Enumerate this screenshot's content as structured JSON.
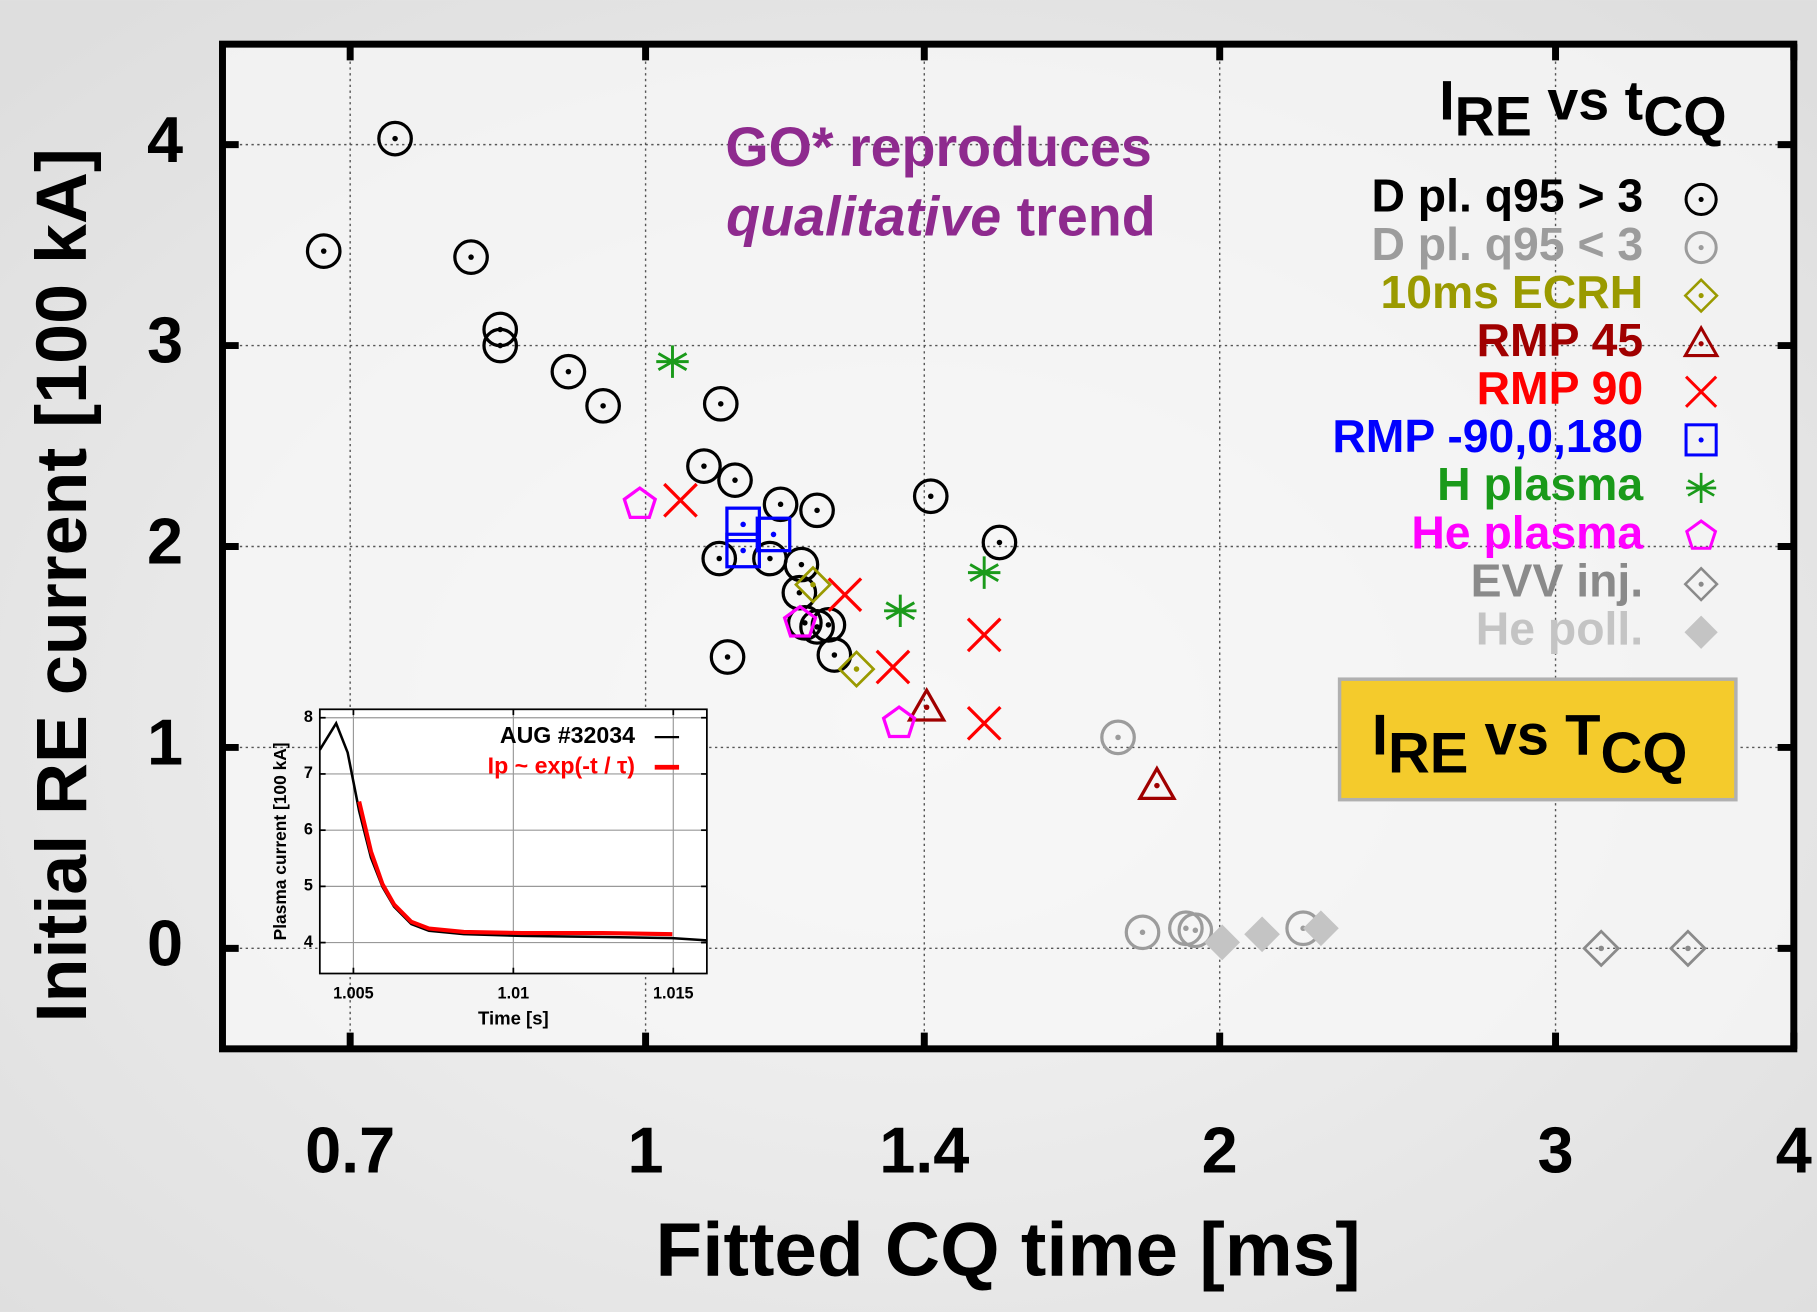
{
  "chart_data": [
    {
      "type": "scatter",
      "x_label": "Fitted CQ time [ms]",
      "y_label": "Initial RE current [100 kA]",
      "xscale": "log",
      "xlim": [
        0.6,
        4
      ],
      "ylim": [
        -0.5,
        4.5
      ],
      "xticks": [
        0.7,
        1,
        1.4,
        2,
        3,
        4
      ],
      "yticks": [
        0,
        1,
        2,
        3,
        4
      ],
      "grid": true,
      "legend": "upper right",
      "legend_title": [
        {
          "text": "I"
        },
        {
          "text": "RE",
          "sub": true
        },
        {
          "text": " vs t"
        },
        {
          "text": "CQ",
          "sub": true
        }
      ],
      "annotations": [
        [
          {
            "text": "GO* reproduces"
          }
        ],
        [
          {
            "text": "qualitative",
            "italic": true
          },
          {
            "text": " trend"
          }
        ]
      ],
      "annotation_color": "#8e2a8e",
      "box_label": [
        {
          "text": "I"
        },
        {
          "text": "RE",
          "sub": true
        },
        {
          "text": " vs T"
        },
        {
          "text": "CQ",
          "sub": true
        }
      ],
      "box_color": "#f4cb2c",
      "series": [
        {
          "name": "D pl. q95 > 3",
          "color": "#000000",
          "marker": "circle-dot",
          "x": [
            0.678,
            0.739,
            0.81,
            0.839,
            0.839,
            0.911,
            0.95,
            1.095,
            1.073,
            1.114,
            1.177,
            1.23,
            1.093,
            1.162,
            1.207,
            1.204,
            1.212,
            1.247,
            1.23,
            1.256,
            1.104,
            1.411,
            1.533
          ],
          "values": [
            3.47,
            4.03,
            3.44,
            3.08,
            3.0,
            2.87,
            2.7,
            2.71,
            2.4,
            2.33,
            2.21,
            2.18,
            1.94,
            1.94,
            1.91,
            1.77,
            1.62,
            1.61,
            1.6,
            1.46,
            1.45,
            2.25,
            2.02
          ]
        },
        {
          "name": "D pl. q95 < 3",
          "color": "#9c9c9c",
          "marker": "circle-dot",
          "x": [
            1.769,
            1.822,
            1.92,
            1.942,
            2.212
          ],
          "values": [
            1.05,
            0.08,
            0.1,
            0.09,
            0.1
          ]
        },
        {
          "name": "10ms ECRH",
          "color": "#9a9a00",
          "marker": "diamond-dot",
          "x": [
            1.224,
            1.29
          ],
          "values": [
            1.81,
            1.39
          ]
        },
        {
          "name": "RMP 45",
          "color": "#a00000",
          "marker": "triangle-dot",
          "x": [
            1.404,
            1.854
          ],
          "values": [
            1.2,
            0.81
          ]
        },
        {
          "name": "RMP 90",
          "color": "#ff0000",
          "marker": "cross",
          "x": [
            1.043,
            1.272,
            1.348,
            1.505,
            1.505
          ],
          "values": [
            2.23,
            1.76,
            1.4,
            1.56,
            1.12
          ]
        },
        {
          "name": "RMP -90,0,180",
          "color": "#0000ff",
          "marker": "square-dot",
          "x": [
            1.125,
            1.167,
            1.125
          ],
          "values": [
            2.11,
            2.06,
            1.98
          ]
        },
        {
          "name": "H plasma",
          "color": "#1a9a1a",
          "marker": "asterisk",
          "x": [
            1.033,
            1.36,
            1.505
          ],
          "values": [
            2.92,
            1.68,
            1.87
          ]
        },
        {
          "name": "He plasma",
          "color": "#ff00ff",
          "marker": "pentagon",
          "x": [
            0.993,
            1.205,
            1.358
          ],
          "values": [
            2.21,
            1.62,
            1.12
          ]
        },
        {
          "name": "EVV inj.",
          "color": "#8a8a8a",
          "marker": "diamond-dot",
          "x": [
            3.17,
            3.52
          ],
          "values": [
            0.0,
            0.0
          ]
        },
        {
          "name": "He poll.",
          "color": "#c4c4c4",
          "marker": "diamond-filled",
          "x": [
            2.006,
            2.105,
            2.26
          ],
          "values": [
            0.03,
            0.07,
            0.1
          ]
        }
      ]
    },
    {
      "type": "line",
      "x_label": "Time [s]",
      "y_label": "Plasma current [100 kA]",
      "xlim": [
        1.00395,
        1.01605
      ],
      "ylim": [
        3.45,
        8.15
      ],
      "xticks": [
        1.005,
        1.01,
        1.015
      ],
      "yticks": [
        4,
        5,
        6,
        7,
        8
      ],
      "grid": true,
      "legend": "upper right",
      "series": [
        {
          "name": "AUG #32034",
          "color": "#000000",
          "x": [
            1.00395,
            1.00446,
            1.00482,
            1.00518,
            1.00555,
            1.00591,
            1.00627,
            1.00681,
            1.00736,
            1.00845,
            1.01026,
            1.0128,
            1.01497,
            1.01605
          ],
          "values": [
            7.43,
            7.9,
            7.38,
            6.34,
            5.51,
            4.99,
            4.64,
            4.33,
            4.21,
            4.15,
            4.12,
            4.1,
            4.08,
            4.04
          ]
        },
        {
          "name": "Ip ~ exp(-t / τ)",
          "color": "#ff0000",
          "x": [
            1.00518,
            1.00555,
            1.00591,
            1.00627,
            1.00681,
            1.00736,
            1.00845,
            1.01026,
            1.0128,
            1.01497
          ],
          "values": [
            6.51,
            5.62,
            5.04,
            4.68,
            4.37,
            4.25,
            4.19,
            4.17,
            4.17,
            4.15
          ]
        }
      ]
    }
  ]
}
